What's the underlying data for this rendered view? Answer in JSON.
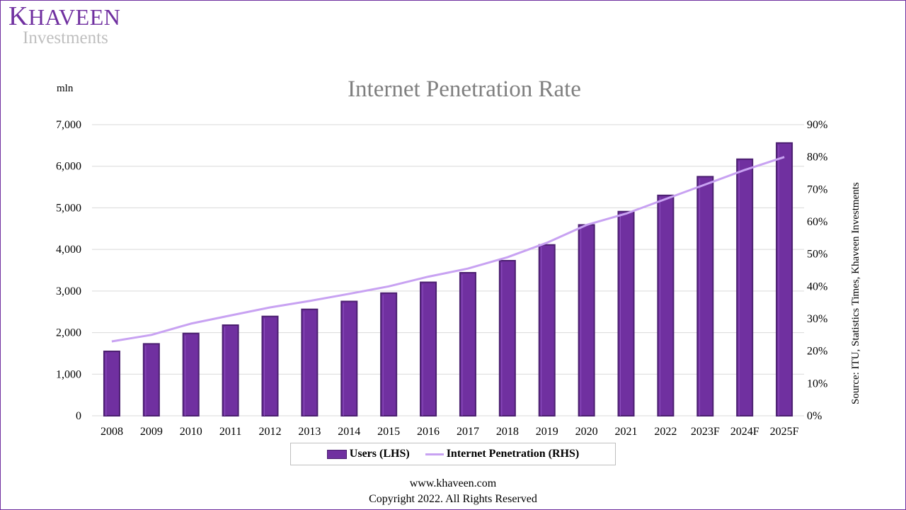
{
  "logo": {
    "brand_initial": "K",
    "brand_rest": "HAVEEN",
    "sub": "Investments"
  },
  "unit_label": "mln",
  "source": "Source: ITU, Statistics Times, Khaveen Investments",
  "legend": {
    "bar": "Users (LHS)",
    "line": "Internet Penetration (RHS)"
  },
  "footer": {
    "website": "www.khaveen.com",
    "copyright": "Copyright 2022. All Rights Reserved"
  },
  "colors": {
    "bar": "#7030a0",
    "bar_dark": "#4b1f70",
    "line": "#c8a2f2",
    "grid": "#d9d9d9",
    "title": "#7f7f7f",
    "border": "#7030a0"
  },
  "chart_data": {
    "type": "bar",
    "title": "Internet Penetration Rate",
    "categories": [
      "2008",
      "2009",
      "2010",
      "2011",
      "2012",
      "2013",
      "2014",
      "2015",
      "2016",
      "2017",
      "2018",
      "2019",
      "2020",
      "2021",
      "2022",
      "2023F",
      "2024F",
      "2025F"
    ],
    "series": [
      {
        "name": "Users (LHS)",
        "type": "bar",
        "axis": "left",
        "values": [
          1550,
          1730,
          1980,
          2180,
          2390,
          2560,
          2750,
          2950,
          3210,
          3440,
          3730,
          4110,
          4590,
          4910,
          5300,
          5750,
          6170,
          6560
        ]
      },
      {
        "name": "Internet Penetration (RHS)",
        "type": "line",
        "axis": "right",
        "values": [
          0.23,
          0.25,
          0.285,
          0.31,
          0.335,
          0.355,
          0.377,
          0.4,
          0.43,
          0.455,
          0.49,
          0.535,
          0.59,
          0.625,
          0.67,
          0.715,
          0.76,
          0.8
        ]
      }
    ],
    "y_left": {
      "min": 0,
      "max": 7000,
      "ticks": [
        "0",
        "1,000",
        "2,000",
        "3,000",
        "4,000",
        "5,000",
        "6,000",
        "7,000"
      ]
    },
    "y_right": {
      "min": 0,
      "max": 0.9,
      "ticks": [
        "0%",
        "10%",
        "20%",
        "30%",
        "40%",
        "50%",
        "60%",
        "70%",
        "80%",
        "90%"
      ]
    },
    "grid": true,
    "legend_position": "bottom"
  }
}
